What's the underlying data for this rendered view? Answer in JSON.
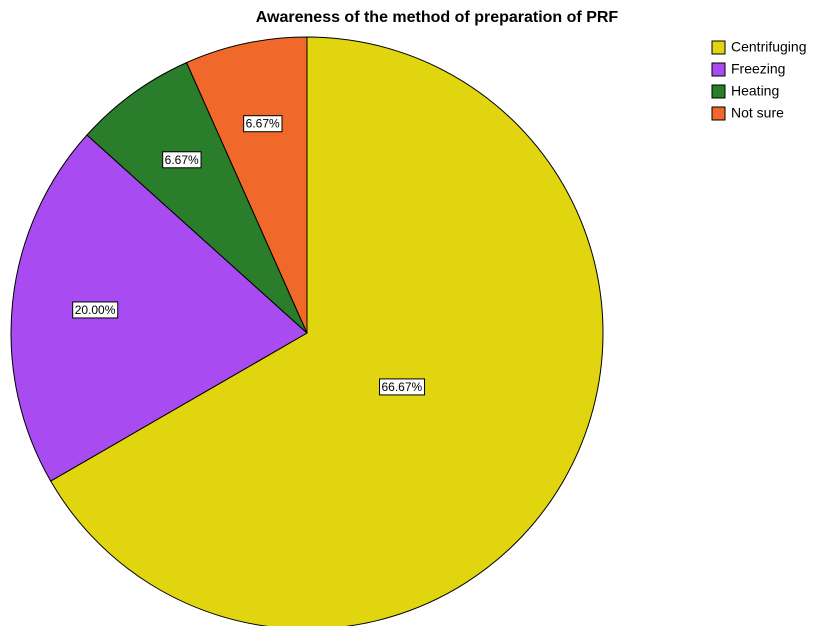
{
  "chart_data": {
    "type": "pie",
    "title": "Awareness of the method of preparation of PRF",
    "categories": [
      "Centrifuging",
      "Freezing",
      "Heating",
      "Not sure"
    ],
    "values": [
      66.67,
      20.0,
      6.67,
      6.67
    ],
    "value_labels": [
      "66.67%",
      "20.00%",
      "6.67%",
      "6.67%"
    ],
    "colors": [
      "#e1d50f",
      "#a84cf2",
      "#2a7d2a",
      "#f0692a"
    ],
    "legend": "right"
  }
}
